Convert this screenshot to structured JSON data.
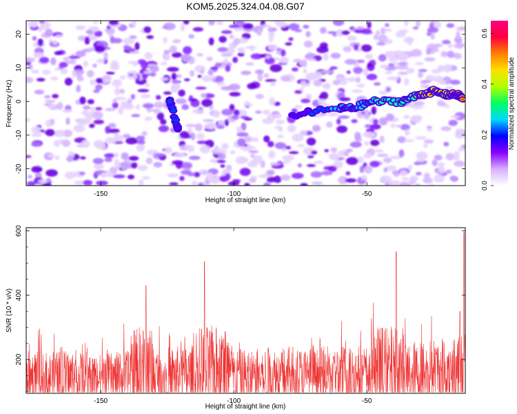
{
  "chart_data": [
    {
      "type": "heatmap",
      "title": "KOM5.2025.324.04.08.G07",
      "xlabel": "Height of straight line (km)",
      "ylabel": "Frequency (Hz)",
      "xlim": [
        -178,
        -13
      ],
      "ylim": [
        -25,
        24
      ],
      "xticks": [
        -150,
        -100,
        -50
      ],
      "yticks": [
        -20,
        -10,
        0,
        10,
        20
      ],
      "colorbar": {
        "label": "Normalized spectral amplitude",
        "range": [
          0,
          0.65
        ],
        "ticks": [
          "0.0",
          "0.2",
          "0.4",
          "0.6"
        ],
        "colors": [
          "#ffffff",
          "#d8b0ff",
          "#8a00ff",
          "#0000ff",
          "#00d8ff",
          "#00ff60",
          "#b0ff00",
          "#ffe000",
          "#ff8000",
          "#ff0040",
          "#ff0080"
        ]
      },
      "ridge_track": [
        {
          "height_km": -124,
          "freq_hz": 0,
          "amp": 0.22
        },
        {
          "height_km": -121,
          "freq_hz": -8,
          "amp": 0.14
        },
        {
          "height_km": -78,
          "freq_hz": -4,
          "amp": 0.1
        },
        {
          "height_km": -60,
          "freq_hz": -2,
          "amp": 0.25
        },
        {
          "height_km": -55,
          "freq_hz": -2,
          "amp": 0.25
        },
        {
          "height_km": -48,
          "freq_hz": 0,
          "amp": 0.3
        },
        {
          "height_km": -37,
          "freq_hz": 0,
          "amp": 0.32
        },
        {
          "height_km": -30,
          "freq_hz": 2,
          "amp": 0.45
        },
        {
          "height_km": -25,
          "freq_hz": 3,
          "amp": 0.5
        },
        {
          "height_km": -20,
          "freq_hz": 2,
          "amp": 0.48
        },
        {
          "height_km": -16,
          "freq_hz": 2,
          "amp": 0.55
        },
        {
          "height_km": -14,
          "freq_hz": 1,
          "amp": 0.55
        }
      ]
    },
    {
      "type": "line",
      "xlabel": "Height of straight line (km)",
      "ylabel": "SNR (10 * v/v)",
      "xlim": [
        -178,
        -13
      ],
      "ylim": [
        95,
        610
      ],
      "xticks": [
        -150,
        -100,
        -50
      ],
      "yticks": [
        200,
        400,
        600
      ],
      "color": "#ee3333",
      "series": [
        {
          "name": "SNR",
          "x": [
            -178,
            -170,
            -160,
            -150,
            -140,
            -133,
            -130,
            -122,
            -115,
            -111,
            -100,
            -90,
            -80,
            -70,
            -60,
            -50,
            -39,
            -35,
            -25,
            -20,
            -15,
            -13.5,
            -13
          ],
          "y": [
            180,
            175,
            185,
            170,
            180,
            430,
            190,
            195,
            200,
            505,
            185,
            190,
            195,
            190,
            200,
            200,
            535,
            210,
            220,
            240,
            350,
            595,
            300
          ]
        }
      ]
    }
  ]
}
